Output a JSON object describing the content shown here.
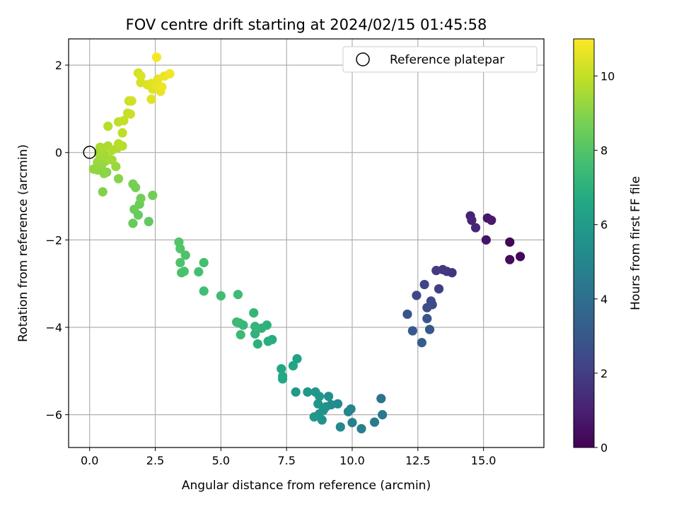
{
  "chart_data": {
    "type": "scatter",
    "title": "FOV centre drift starting at 2024/02/15 01:45:58",
    "xlabel": "Angular distance from reference (arcmin)",
    "ylabel": "Rotation from reference (arcmin)",
    "xlim": [
      -0.8,
      17.3
    ],
    "ylim": [
      -6.75,
      2.6
    ],
    "xticks": [
      0.0,
      2.5,
      5.0,
      7.5,
      10.0,
      12.5,
      15.0
    ],
    "xtick_labels": [
      "0.0",
      "2.5",
      "5.0",
      "7.5",
      "10.0",
      "12.5",
      "15.0"
    ],
    "yticks": [
      -6,
      -4,
      -2,
      0,
      2
    ],
    "ytick_labels": [
      "−6",
      "−4",
      "−2",
      "0",
      "2"
    ],
    "grid": true,
    "legend": {
      "placement": "top-right",
      "entries": [
        {
          "label": "Reference platepar",
          "marker": "open-circle",
          "x": 0,
          "y": 0
        }
      ]
    },
    "colorbar": {
      "label": "Hours from first FF file",
      "colormap": "viridis",
      "range": [
        0,
        11
      ],
      "ticks": [
        0,
        2,
        4,
        6,
        8,
        10
      ],
      "tick_labels": [
        "0",
        "2",
        "4",
        "6",
        "8",
        "10"
      ]
    },
    "series": [
      {
        "color_by": "hours",
        "points": [
          {
            "x": 16.0,
            "y": -2.05,
            "c": 0.1
          },
          {
            "x": 16.4,
            "y": -2.38,
            "c": 0.2
          },
          {
            "x": 16.0,
            "y": -2.45,
            "c": 0.3
          },
          {
            "x": 15.1,
            "y": -2.0,
            "c": 0.6
          },
          {
            "x": 15.15,
            "y": -1.5,
            "c": 0.7
          },
          {
            "x": 15.3,
            "y": -1.55,
            "c": 0.8
          },
          {
            "x": 14.5,
            "y": -1.45,
            "c": 1.0
          },
          {
            "x": 14.55,
            "y": -1.55,
            "c": 1.1
          },
          {
            "x": 14.7,
            "y": -1.72,
            "c": 1.2
          },
          {
            "x": 13.8,
            "y": -2.75,
            "c": 1.6
          },
          {
            "x": 13.6,
            "y": -2.72,
            "c": 1.7
          },
          {
            "x": 13.45,
            "y": -2.68,
            "c": 1.8
          },
          {
            "x": 13.2,
            "y": -2.7,
            "c": 1.9
          },
          {
            "x": 13.3,
            "y": -3.12,
            "c": 2.0
          },
          {
            "x": 12.75,
            "y": -3.02,
            "c": 2.2
          },
          {
            "x": 12.45,
            "y": -3.27,
            "c": 2.3
          },
          {
            "x": 13.0,
            "y": -3.4,
            "c": 2.4
          },
          {
            "x": 13.05,
            "y": -3.48,
            "c": 2.5
          },
          {
            "x": 12.85,
            "y": -3.55,
            "c": 2.6
          },
          {
            "x": 12.1,
            "y": -3.7,
            "c": 2.8
          },
          {
            "x": 12.85,
            "y": -3.8,
            "c": 2.9
          },
          {
            "x": 12.95,
            "y": -4.05,
            "c": 3.0
          },
          {
            "x": 12.3,
            "y": -4.08,
            "c": 3.1
          },
          {
            "x": 12.65,
            "y": -4.35,
            "c": 3.2
          },
          {
            "x": 11.1,
            "y": -5.63,
            "c": 4.2
          },
          {
            "x": 11.15,
            "y": -6.0,
            "c": 4.4
          },
          {
            "x": 10.85,
            "y": -6.17,
            "c": 4.5
          },
          {
            "x": 10.35,
            "y": -6.32,
            "c": 4.7
          },
          {
            "x": 10.0,
            "y": -6.18,
            "c": 4.8
          },
          {
            "x": 9.95,
            "y": -5.87,
            "c": 4.9
          },
          {
            "x": 9.85,
            "y": -5.93,
            "c": 5.0
          },
          {
            "x": 9.55,
            "y": -6.28,
            "c": 5.1
          },
          {
            "x": 9.45,
            "y": -5.75,
            "c": 5.2
          },
          {
            "x": 9.2,
            "y": -5.77,
            "c": 5.3
          },
          {
            "x": 9.1,
            "y": -5.58,
            "c": 5.4
          },
          {
            "x": 9.0,
            "y": -5.82,
            "c": 5.5
          },
          {
            "x": 8.9,
            "y": -5.9,
            "c": 5.6
          },
          {
            "x": 8.85,
            "y": -6.12,
            "c": 5.6
          },
          {
            "x": 8.75,
            "y": -5.98,
            "c": 5.7
          },
          {
            "x": 8.7,
            "y": -5.75,
            "c": 5.7
          },
          {
            "x": 8.75,
            "y": -5.58,
            "c": 5.8
          },
          {
            "x": 8.6,
            "y": -5.48,
            "c": 5.8
          },
          {
            "x": 8.55,
            "y": -6.05,
            "c": 5.9
          },
          {
            "x": 8.3,
            "y": -5.48,
            "c": 5.9
          },
          {
            "x": 7.85,
            "y": -5.48,
            "c": 6.0
          },
          {
            "x": 7.9,
            "y": -4.72,
            "c": 6.3
          },
          {
            "x": 7.75,
            "y": -4.88,
            "c": 6.4
          },
          {
            "x": 7.35,
            "y": -5.18,
            "c": 6.5
          },
          {
            "x": 7.3,
            "y": -4.95,
            "c": 6.5
          },
          {
            "x": 7.35,
            "y": -5.12,
            "c": 6.6
          },
          {
            "x": 6.95,
            "y": -4.28,
            "c": 6.8
          },
          {
            "x": 6.8,
            "y": -4.32,
            "c": 6.9
          },
          {
            "x": 6.75,
            "y": -3.95,
            "c": 7.0
          },
          {
            "x": 6.4,
            "y": -4.38,
            "c": 7.0
          },
          {
            "x": 6.55,
            "y": -4.02,
            "c": 7.1
          },
          {
            "x": 6.3,
            "y": -4.15,
            "c": 7.1
          },
          {
            "x": 6.3,
            "y": -3.98,
            "c": 7.2
          },
          {
            "x": 6.25,
            "y": -3.67,
            "c": 7.2
          },
          {
            "x": 5.85,
            "y": -3.95,
            "c": 7.3
          },
          {
            "x": 5.7,
            "y": -3.9,
            "c": 7.3
          },
          {
            "x": 5.6,
            "y": -3.88,
            "c": 7.4
          },
          {
            "x": 5.75,
            "y": -4.17,
            "c": 7.4
          },
          {
            "x": 5.65,
            "y": -3.25,
            "c": 7.5
          },
          {
            "x": 5.0,
            "y": -3.28,
            "c": 7.6
          },
          {
            "x": 4.35,
            "y": -3.17,
            "c": 7.6
          },
          {
            "x": 4.35,
            "y": -2.52,
            "c": 7.7
          },
          {
            "x": 4.15,
            "y": -2.73,
            "c": 7.7
          },
          {
            "x": 3.6,
            "y": -2.72,
            "c": 7.8
          },
          {
            "x": 3.5,
            "y": -2.75,
            "c": 7.8
          },
          {
            "x": 3.45,
            "y": -2.52,
            "c": 7.9
          },
          {
            "x": 3.65,
            "y": -2.35,
            "c": 7.9
          },
          {
            "x": 3.45,
            "y": -2.2,
            "c": 8.0
          },
          {
            "x": 3.4,
            "y": -2.05,
            "c": 8.0
          },
          {
            "x": 2.25,
            "y": -1.58,
            "c": 8.3
          },
          {
            "x": 1.65,
            "y": -1.62,
            "c": 8.4
          },
          {
            "x": 1.85,
            "y": -1.43,
            "c": 8.4
          },
          {
            "x": 1.7,
            "y": -1.3,
            "c": 8.5
          },
          {
            "x": 1.9,
            "y": -1.18,
            "c": 8.5
          },
          {
            "x": 1.95,
            "y": -1.05,
            "c": 8.6
          },
          {
            "x": 2.4,
            "y": -0.98,
            "c": 8.6
          },
          {
            "x": 1.75,
            "y": -0.8,
            "c": 8.7
          },
          {
            "x": 1.65,
            "y": -0.72,
            "c": 8.7
          },
          {
            "x": 0.5,
            "y": -0.9,
            "c": 8.9
          },
          {
            "x": 1.1,
            "y": -0.6,
            "c": 9.0
          },
          {
            "x": 0.65,
            "y": -0.45,
            "c": 9.0
          },
          {
            "x": 0.55,
            "y": -0.48,
            "c": 9.1
          },
          {
            "x": 0.3,
            "y": -0.4,
            "c": 9.1
          },
          {
            "x": 0.15,
            "y": -0.38,
            "c": 9.2
          },
          {
            "x": 0.45,
            "y": -0.3,
            "c": 9.2
          },
          {
            "x": 0.6,
            "y": -0.2,
            "c": 9.3
          },
          {
            "x": 0.3,
            "y": -0.22,
            "c": 9.3
          },
          {
            "x": 1.0,
            "y": -0.32,
            "c": 9.3
          },
          {
            "x": 0.85,
            "y": -0.17,
            "c": 9.4
          },
          {
            "x": 0.4,
            "y": -0.1,
            "c": 9.4
          },
          {
            "x": 0.55,
            "y": -0.05,
            "c": 9.4
          },
          {
            "x": 0.75,
            "y": -0.15,
            "c": 9.5
          },
          {
            "x": 0.35,
            "y": 0.0,
            "c": 9.5
          },
          {
            "x": 0.4,
            "y": 0.12,
            "c": 9.5
          },
          {
            "x": 0.5,
            "y": 0.1,
            "c": 9.6
          },
          {
            "x": 0.7,
            "y": 0.15,
            "c": 9.6
          },
          {
            "x": 0.85,
            "y": 0.05,
            "c": 9.7
          },
          {
            "x": 1.05,
            "y": 0.1,
            "c": 9.7
          },
          {
            "x": 1.1,
            "y": 0.2,
            "c": 9.8
          },
          {
            "x": 1.25,
            "y": 0.15,
            "c": 9.8
          },
          {
            "x": 0.7,
            "y": 0.6,
            "c": 9.8
          },
          {
            "x": 1.25,
            "y": 0.45,
            "c": 9.9
          },
          {
            "x": 1.1,
            "y": 0.7,
            "c": 9.9
          },
          {
            "x": 1.3,
            "y": 0.73,
            "c": 10.0
          },
          {
            "x": 1.45,
            "y": 0.9,
            "c": 10.0
          },
          {
            "x": 1.55,
            "y": 0.88,
            "c": 10.1
          },
          {
            "x": 1.5,
            "y": 1.18,
            "c": 10.1
          },
          {
            "x": 1.6,
            "y": 1.18,
            "c": 10.2
          },
          {
            "x": 1.95,
            "y": 1.6,
            "c": 10.3
          },
          {
            "x": 1.85,
            "y": 1.82,
            "c": 10.3
          },
          {
            "x": 1.95,
            "y": 1.75,
            "c": 10.4
          },
          {
            "x": 2.2,
            "y": 1.55,
            "c": 10.4
          },
          {
            "x": 2.35,
            "y": 1.58,
            "c": 10.5
          },
          {
            "x": 2.4,
            "y": 1.45,
            "c": 10.5
          },
          {
            "x": 2.35,
            "y": 1.22,
            "c": 10.5
          },
          {
            "x": 2.6,
            "y": 1.68,
            "c": 10.6
          },
          {
            "x": 2.55,
            "y": 1.55,
            "c": 10.6
          },
          {
            "x": 2.7,
            "y": 1.4,
            "c": 10.6
          },
          {
            "x": 2.75,
            "y": 1.5,
            "c": 10.7
          },
          {
            "x": 2.85,
            "y": 1.75,
            "c": 10.7
          },
          {
            "x": 3.05,
            "y": 1.8,
            "c": 10.8
          },
          {
            "x": 2.55,
            "y": 2.18,
            "c": 10.9
          }
        ]
      }
    ]
  },
  "colors": {
    "grid": "#b0b0b0",
    "axes": "#000000",
    "reference_marker": "#000000"
  }
}
